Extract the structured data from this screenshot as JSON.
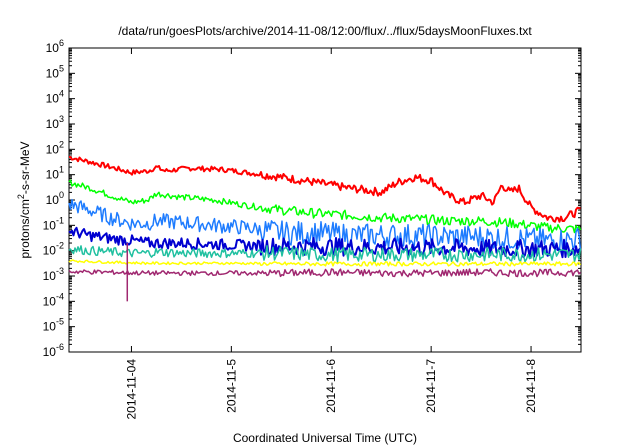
{
  "chart_data": {
    "type": "line",
    "title": "/data/run/goesPlots/archive/2014-11-08/12:00/flux/../flux/5daysMoonFluxes.txt",
    "xlabel": "Coordinated Universal Time (UTC)",
    "ylabel_parts": [
      "protons/cm",
      "2",
      "-s-sr-MeV"
    ],
    "x_scale": "time",
    "y_scale": "log",
    "xlim": [
      "2014-11-03T09:00",
      "2014-11-08T12:00"
    ],
    "ylim": [
      1e-06,
      1000000.0
    ],
    "grid": false,
    "legend": "none",
    "x_ticks": [
      "2014-11-04",
      "2014-11-5",
      "2014-11-6",
      "2014-11-7",
      "2014-11-8"
    ],
    "y_ticks": [
      {
        "base": "10",
        "exp": "-6"
      },
      {
        "base": "10",
        "exp": "-5"
      },
      {
        "base": "10",
        "exp": "-4"
      },
      {
        "base": "10",
        "exp": "-3"
      },
      {
        "base": "10",
        "exp": "-2"
      },
      {
        "base": "10",
        "exp": "-1"
      },
      {
        "base": "10",
        "exp": "0"
      },
      {
        "base": "10",
        "exp": "1"
      },
      {
        "base": "10",
        "exp": "2"
      },
      {
        "base": "10",
        "exp": "3"
      },
      {
        "base": "10",
        "exp": "4"
      },
      {
        "base": "10",
        "exp": "5"
      },
      {
        "base": "10",
        "exp": "6"
      }
    ],
    "series": [
      {
        "color": "#ff0000",
        "x": [
          "2014-11-03T09:00",
          "2014-11-03T14:00",
          "2014-11-03T19:00",
          "2014-11-04T00:00",
          "2014-11-04T04:00",
          "2014-11-04T06:00",
          "2014-11-04T08:00",
          "2014-11-04T14:00",
          "2014-11-04T22:00",
          "2014-11-05T04:00",
          "2014-11-05T12:00",
          "2014-11-05T20:00",
          "2014-11-06T04:00",
          "2014-11-06T08:00",
          "2014-11-06T12:00",
          "2014-11-06T16:00",
          "2014-11-06T20:00",
          "2014-11-07T00:00",
          "2014-11-07T04:00",
          "2014-11-07T08:00",
          "2014-11-07T12:00",
          "2014-11-07T15:00",
          "2014-11-07T17:00",
          "2014-11-07T19:00",
          "2014-11-07T21:00",
          "2014-11-08T00:00",
          "2014-11-08T04:00",
          "2014-11-08T08:00",
          "2014-11-08T12:00"
        ],
        "y": [
          50,
          32,
          20,
          12,
          14,
          20,
          14,
          18,
          16,
          12,
          8,
          5,
          3,
          2.5,
          2,
          5,
          8,
          6,
          1.5,
          0.8,
          1.5,
          0.8,
          4,
          2,
          3,
          0.5,
          0.2,
          0.2,
          0.4
        ]
      },
      {
        "color": "#00ff00",
        "x": [
          "2014-11-03T09:00",
          "2014-11-03T14:00",
          "2014-11-03T19:00",
          "2014-11-04T00:00",
          "2014-11-04T04:00",
          "2014-11-04T06:00",
          "2014-11-04T12:00",
          "2014-11-04T20:00",
          "2014-11-05T04:00",
          "2014-11-05T12:00",
          "2014-11-05T20:00",
          "2014-11-06T04:00",
          "2014-11-06T12:00",
          "2014-11-06T20:00",
          "2014-11-07T04:00",
          "2014-11-07T12:00",
          "2014-11-07T20:00",
          "2014-11-08T04:00",
          "2014-11-08T12:00"
        ],
        "y": [
          5,
          3,
          1.5,
          0.8,
          1,
          1.8,
          1.3,
          1,
          0.6,
          0.4,
          0.3,
          0.25,
          0.2,
          0.18,
          0.15,
          0.15,
          0.12,
          0.08,
          0.07
        ]
      },
      {
        "color": "#1e7cff",
        "x": [
          "2014-11-03T09:00",
          "2014-11-03T14:00",
          "2014-11-03T19:00",
          "2014-11-04T00:00",
          "2014-11-04T04:00",
          "2014-11-04T06:00",
          "2014-11-04T12:00",
          "2014-11-04T20:00",
          "2014-11-05T04:00",
          "2014-11-05T12:00",
          "2014-11-05T20:00",
          "2014-11-06T04:00",
          "2014-11-06T12:00",
          "2014-11-06T20:00",
          "2014-11-07T04:00",
          "2014-11-07T12:00",
          "2014-11-07T20:00",
          "2014-11-08T04:00",
          "2014-11-08T12:00"
        ],
        "y": [
          0.7,
          0.4,
          0.2,
          0.12,
          0.12,
          0.15,
          0.13,
          0.1,
          0.08,
          0.05,
          0.05,
          0.04,
          0.04,
          0.04,
          0.035,
          0.035,
          0.03,
          0.025,
          0.03
        ]
      },
      {
        "color": "#0000d0",
        "x": [
          "2014-11-03T09:00",
          "2014-11-03T14:00",
          "2014-11-03T19:00",
          "2014-11-04T00:00",
          "2014-11-04T04:00",
          "2014-11-04T06:00",
          "2014-11-04T12:00",
          "2014-11-04T20:00",
          "2014-11-05T04:00",
          "2014-11-05T12:00",
          "2014-11-05T20:00",
          "2014-11-06T04:00",
          "2014-11-06T12:00",
          "2014-11-06T20:00",
          "2014-11-07T04:00",
          "2014-11-07T12:00",
          "2014-11-07T20:00",
          "2014-11-08T04:00",
          "2014-11-08T12:00"
        ],
        "y": [
          0.06,
          0.04,
          0.03,
          0.025,
          0.02,
          0.02,
          0.02,
          0.018,
          0.016,
          0.015,
          0.015,
          0.014,
          0.014,
          0.013,
          0.013,
          0.012,
          0.012,
          0.012,
          0.012
        ]
      },
      {
        "color": "#20c0a0",
        "x": [
          "2014-11-03T09:00",
          "2014-11-03T14:00",
          "2014-11-03T19:00",
          "2014-11-04T00:00",
          "2014-11-04T04:00",
          "2014-11-04T06:00",
          "2014-11-04T12:00",
          "2014-11-04T20:00",
          "2014-11-05T04:00",
          "2014-11-05T12:00",
          "2014-11-05T20:00",
          "2014-11-06T04:00",
          "2014-11-06T12:00",
          "2014-11-06T20:00",
          "2014-11-07T04:00",
          "2014-11-07T12:00",
          "2014-11-07T20:00",
          "2014-11-08T04:00",
          "2014-11-08T12:00"
        ],
        "y": [
          0.012,
          0.01,
          0.009,
          0.008,
          0.008,
          0.009,
          0.008,
          0.008,
          0.008,
          0.008,
          0.007,
          0.007,
          0.007,
          0.007,
          0.007,
          0.007,
          0.007,
          0.007,
          0.007
        ]
      },
      {
        "color": "#ffff00",
        "x": [
          "2014-11-03T09:00",
          "2014-11-03T19:00",
          "2014-11-04T04:00",
          "2014-11-04T12:00",
          "2014-11-05T00:00",
          "2014-11-05T12:00",
          "2014-11-06T00:00",
          "2014-11-06T12:00",
          "2014-11-07T00:00",
          "2014-11-07T12:00",
          "2014-11-08T00:00",
          "2014-11-08T12:00"
        ],
        "y": [
          0.004,
          0.0035,
          0.0032,
          0.0032,
          0.0032,
          0.003,
          0.003,
          0.003,
          0.003,
          0.003,
          0.003,
          0.003
        ]
      },
      {
        "color": "#a02870",
        "x": [
          "2014-11-03T09:00",
          "2014-11-03T19:00",
          "2014-11-04T04:00",
          "2014-11-04T12:00",
          "2014-11-05T00:00",
          "2014-11-05T12:00",
          "2014-11-06T00:00",
          "2014-11-06T12:00",
          "2014-11-07T00:00",
          "2014-11-07T12:00",
          "2014-11-08T00:00",
          "2014-11-08T12:00"
        ],
        "y": [
          0.0015,
          0.0014,
          0.0013,
          0.0013,
          0.0013,
          0.0013,
          0.0014,
          0.0013,
          0.0013,
          0.0014,
          0.0013,
          0.0014
        ]
      }
    ],
    "dips": [
      {
        "x": "2014-11-03T23:00",
        "y": 0.0001
      }
    ]
  }
}
